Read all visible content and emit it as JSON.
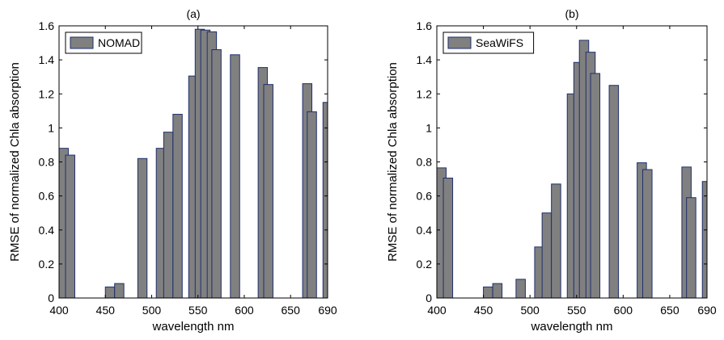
{
  "figure": {
    "bar_fill": "#808080",
    "bar_edge": "#1f2f6b",
    "background": "#ffffff"
  },
  "chart_data": [
    {
      "type": "bar",
      "title": "(a)",
      "xlabel": "wavelength nm",
      "ylabel": "RMSE of normalized Chla absorption",
      "xlim": [
        400,
        690
      ],
      "ylim": [
        0,
        1.6
      ],
      "xticks": [
        "400",
        "450",
        "500",
        "550",
        "600",
        "650",
        "690"
      ],
      "yticks": [
        "0",
        "0.2",
        "0.4",
        "0.6",
        "0.8",
        "1",
        "1.2",
        "1.4",
        "1.6"
      ],
      "grid": false,
      "legend": {
        "position": "top-left",
        "entries": [
          "NOMAD"
        ]
      },
      "bar_width": 10,
      "series": [
        {
          "name": "NOMAD",
          "x": [
            405,
            412,
            455,
            465,
            490,
            510,
            518,
            528,
            545,
            552,
            558,
            565,
            570,
            590,
            620,
            626,
            668,
            673,
            690
          ],
          "values": [
            0.88,
            0.84,
            0.065,
            0.085,
            0.82,
            0.88,
            0.975,
            1.08,
            1.305,
            1.58,
            1.575,
            1.565,
            1.46,
            1.43,
            1.355,
            1.255,
            1.26,
            1.095,
            1.15
          ]
        }
      ]
    },
    {
      "type": "bar",
      "title": "(b)",
      "xlabel": "wavelength nm",
      "ylabel": "RMSE of normalized Chla absorption",
      "xlim": [
        400,
        690
      ],
      "ylim": [
        0,
        1.6
      ],
      "xticks": [
        "400",
        "450",
        "500",
        "550",
        "600",
        "650",
        "690"
      ],
      "yticks": [
        "0",
        "0.2",
        "0.4",
        "0.6",
        "0.8",
        "1",
        "1.2",
        "1.4",
        "1.6"
      ],
      "grid": false,
      "legend": {
        "position": "top-left",
        "entries": [
          "SeaWiFS"
        ]
      },
      "bar_width": 10,
      "series": [
        {
          "name": "SeaWiFS",
          "x": [
            405,
            412,
            455,
            465,
            490,
            510,
            518,
            528,
            545,
            552,
            558,
            565,
            570,
            590,
            620,
            626,
            668,
            673,
            690
          ],
          "values": [
            0.765,
            0.705,
            0.065,
            0.085,
            0.11,
            0.3,
            0.5,
            0.67,
            1.2,
            1.385,
            1.515,
            1.445,
            1.32,
            1.25,
            0.795,
            0.755,
            0.77,
            0.59,
            0.685
          ]
        }
      ]
    }
  ]
}
